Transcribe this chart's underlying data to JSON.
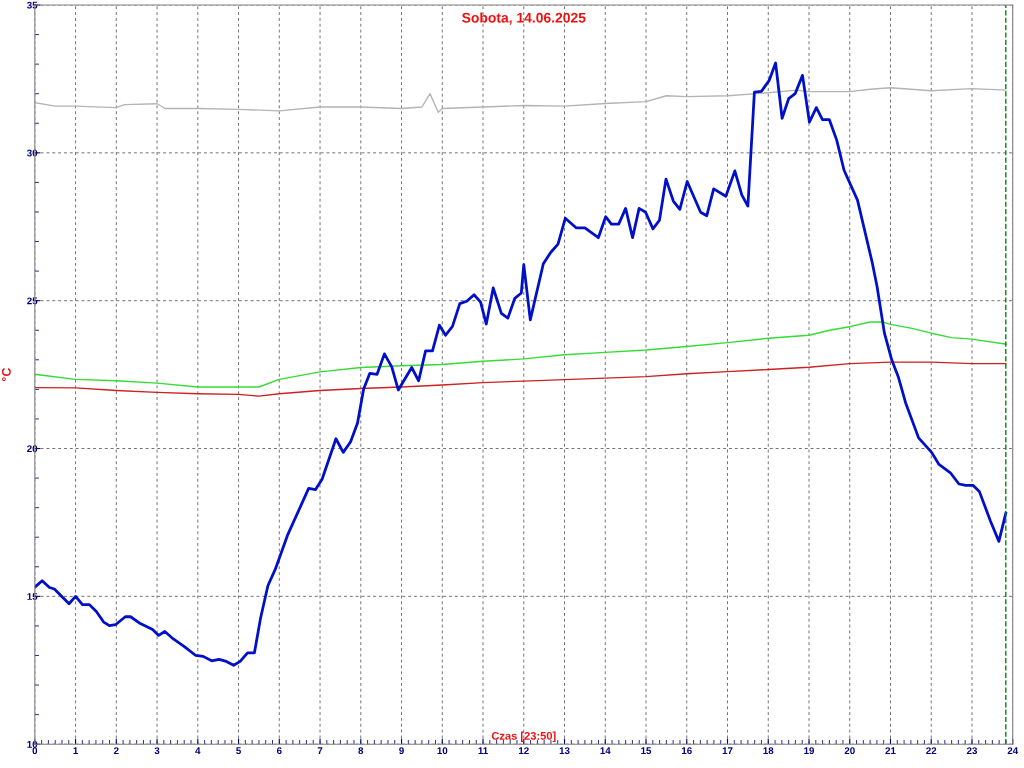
{
  "chart_data": {
    "type": "line",
    "title": "Sobota, 14.06.2025",
    "xlabel": "Czas [23:50]",
    "ylabel": "°C",
    "xlim": [
      0,
      24
    ],
    "xticks": [
      0,
      1,
      2,
      3,
      4,
      5,
      6,
      7,
      8,
      9,
      10,
      11,
      12,
      13,
      14,
      15,
      16,
      17,
      18,
      19,
      20,
      21,
      22,
      23,
      24
    ],
    "ylim": [
      10,
      35
    ],
    "yticks": [
      10,
      15,
      20,
      25,
      30,
      35
    ],
    "grid": true,
    "legend": false,
    "marker": "none",
    "line_style": "solid",
    "ref_lines": [
      {
        "axis": "x",
        "value": 23.83,
        "label": null,
        "color": "#008800",
        "line_style": "dashed"
      }
    ],
    "series": [
      {
        "color": "#b4b4b4",
        "x": [
          0,
          0.5,
          1,
          2,
          2.2,
          3,
          3.2,
          4,
          5,
          6,
          7,
          8,
          9,
          9.5,
          9.7,
          9.9,
          10,
          11,
          12,
          13,
          14,
          15,
          15.5,
          16,
          17,
          18,
          18.7,
          19,
          20,
          20.5,
          21,
          22,
          23,
          23.83
        ],
        "values": [
          31.7,
          31.58,
          31.58,
          31.53,
          31.63,
          31.66,
          31.5,
          31.5,
          31.47,
          31.42,
          31.55,
          31.55,
          31.5,
          31.55,
          32.0,
          31.37,
          31.5,
          31.55,
          31.6,
          31.58,
          31.67,
          31.73,
          31.93,
          31.9,
          31.93,
          32.03,
          32.12,
          32.07,
          32.07,
          32.15,
          32.2,
          32.1,
          32.17,
          32.12
        ]
      },
      {
        "color": "#cc2222",
        "x": [
          0,
          1,
          2,
          3,
          4,
          5,
          5.5,
          6,
          7,
          8,
          9,
          10,
          11,
          12,
          13,
          14,
          15,
          16,
          17,
          18,
          19,
          20,
          21,
          22,
          23,
          23.83
        ],
        "values": [
          22.06,
          22.05,
          21.96,
          21.9,
          21.85,
          21.83,
          21.77,
          21.85,
          21.96,
          22.03,
          22.08,
          22.15,
          22.23,
          22.28,
          22.33,
          22.38,
          22.43,
          22.53,
          22.6,
          22.67,
          22.75,
          22.87,
          22.92,
          22.92,
          22.87,
          22.87
        ]
      },
      {
        "color": "#33dd33",
        "x": [
          0,
          1,
          2,
          3,
          4,
          5,
          5.5,
          6,
          7,
          8,
          9,
          10,
          11,
          12,
          13,
          14,
          15,
          16,
          17,
          18,
          19,
          19.5,
          20,
          20.5,
          20.8,
          21,
          21.5,
          22,
          22.5,
          23,
          23.83
        ],
        "values": [
          22.51,
          22.34,
          22.29,
          22.21,
          22.08,
          22.08,
          22.08,
          22.34,
          22.59,
          22.74,
          22.8,
          22.84,
          22.95,
          23.03,
          23.17,
          23.25,
          23.33,
          23.45,
          23.58,
          23.73,
          23.83,
          24.0,
          24.12,
          24.28,
          24.28,
          24.2,
          24.07,
          23.9,
          23.75,
          23.7,
          23.53
        ]
      },
      {
        "color": "#0010c8",
        "x": [
          0,
          0.18,
          0.36,
          0.48,
          0.84,
          1.0,
          1.17,
          1.34,
          1.51,
          1.69,
          1.83,
          1.98,
          2.22,
          2.35,
          2.59,
          2.89,
          3.04,
          3.19,
          3.4,
          3.67,
          3.95,
          4.13,
          4.34,
          4.52,
          4.7,
          4.88,
          5.04,
          5.22,
          5.39,
          5.54,
          5.72,
          5.9,
          6.2,
          6.72,
          6.89,
          7.05,
          7.39,
          7.57,
          7.75,
          7.92,
          8.07,
          8.22,
          8.4,
          8.58,
          8.76,
          8.92,
          9.25,
          9.42,
          9.59,
          9.76,
          9.93,
          10.08,
          10.25,
          10.43,
          10.6,
          10.78,
          10.94,
          11.08,
          11.25,
          11.45,
          11.61,
          11.78,
          11.94,
          12.0,
          12.16,
          12.48,
          12.66,
          12.84,
          13.02,
          13.29,
          13.5,
          13.83,
          14.01,
          14.15,
          14.33,
          14.5,
          14.67,
          14.83,
          14.99,
          15.17,
          15.33,
          15.49,
          15.67,
          15.83,
          16.01,
          16.34,
          16.49,
          16.66,
          16.96,
          17.18,
          17.35,
          17.5,
          17.66,
          17.83,
          18.02,
          18.18,
          18.34,
          18.5,
          18.66,
          18.84,
          19.01,
          19.18,
          19.33,
          19.5,
          19.68,
          19.86,
          20.19,
          20.55,
          20.67,
          20.85,
          21.03,
          21.19,
          21.37,
          21.69,
          22.01,
          22.19,
          22.47,
          22.68,
          22.85,
          23.03,
          23.18,
          23.45,
          23.66,
          23.83
        ],
        "values": [
          15.31,
          15.53,
          15.3,
          15.25,
          14.75,
          15.0,
          14.72,
          14.72,
          14.49,
          14.13,
          14.01,
          14.04,
          14.31,
          14.31,
          14.08,
          13.88,
          13.68,
          13.81,
          13.56,
          13.3,
          13.0,
          12.97,
          12.82,
          12.87,
          12.8,
          12.67,
          12.8,
          13.09,
          13.09,
          14.26,
          15.36,
          15.91,
          17.06,
          18.65,
          18.61,
          18.96,
          20.33,
          19.87,
          20.23,
          20.86,
          22.01,
          22.54,
          22.51,
          23.2,
          22.76,
          21.98,
          22.74,
          22.29,
          23.3,
          23.3,
          24.17,
          23.83,
          24.13,
          24.9,
          24.98,
          25.2,
          24.95,
          24.21,
          25.43,
          24.57,
          24.41,
          25.08,
          25.26,
          26.22,
          24.35,
          26.25,
          26.63,
          26.91,
          27.79,
          27.46,
          27.46,
          27.13,
          27.84,
          27.59,
          27.59,
          28.12,
          27.13,
          28.12,
          27.99,
          27.43,
          27.72,
          29.11,
          28.37,
          28.09,
          29.03,
          27.99,
          27.87,
          28.78,
          28.53,
          29.39,
          28.58,
          28.2,
          32.05,
          32.08,
          32.44,
          33.04,
          31.17,
          31.83,
          32.0,
          32.62,
          31.04,
          31.53,
          31.12,
          31.12,
          30.43,
          29.41,
          28.4,
          26.3,
          25.48,
          23.91,
          23.0,
          22.43,
          21.55,
          20.36,
          19.87,
          19.46,
          19.18,
          18.8,
          18.75,
          18.75,
          18.55,
          17.56,
          16.86,
          17.81
        ]
      }
    ]
  }
}
